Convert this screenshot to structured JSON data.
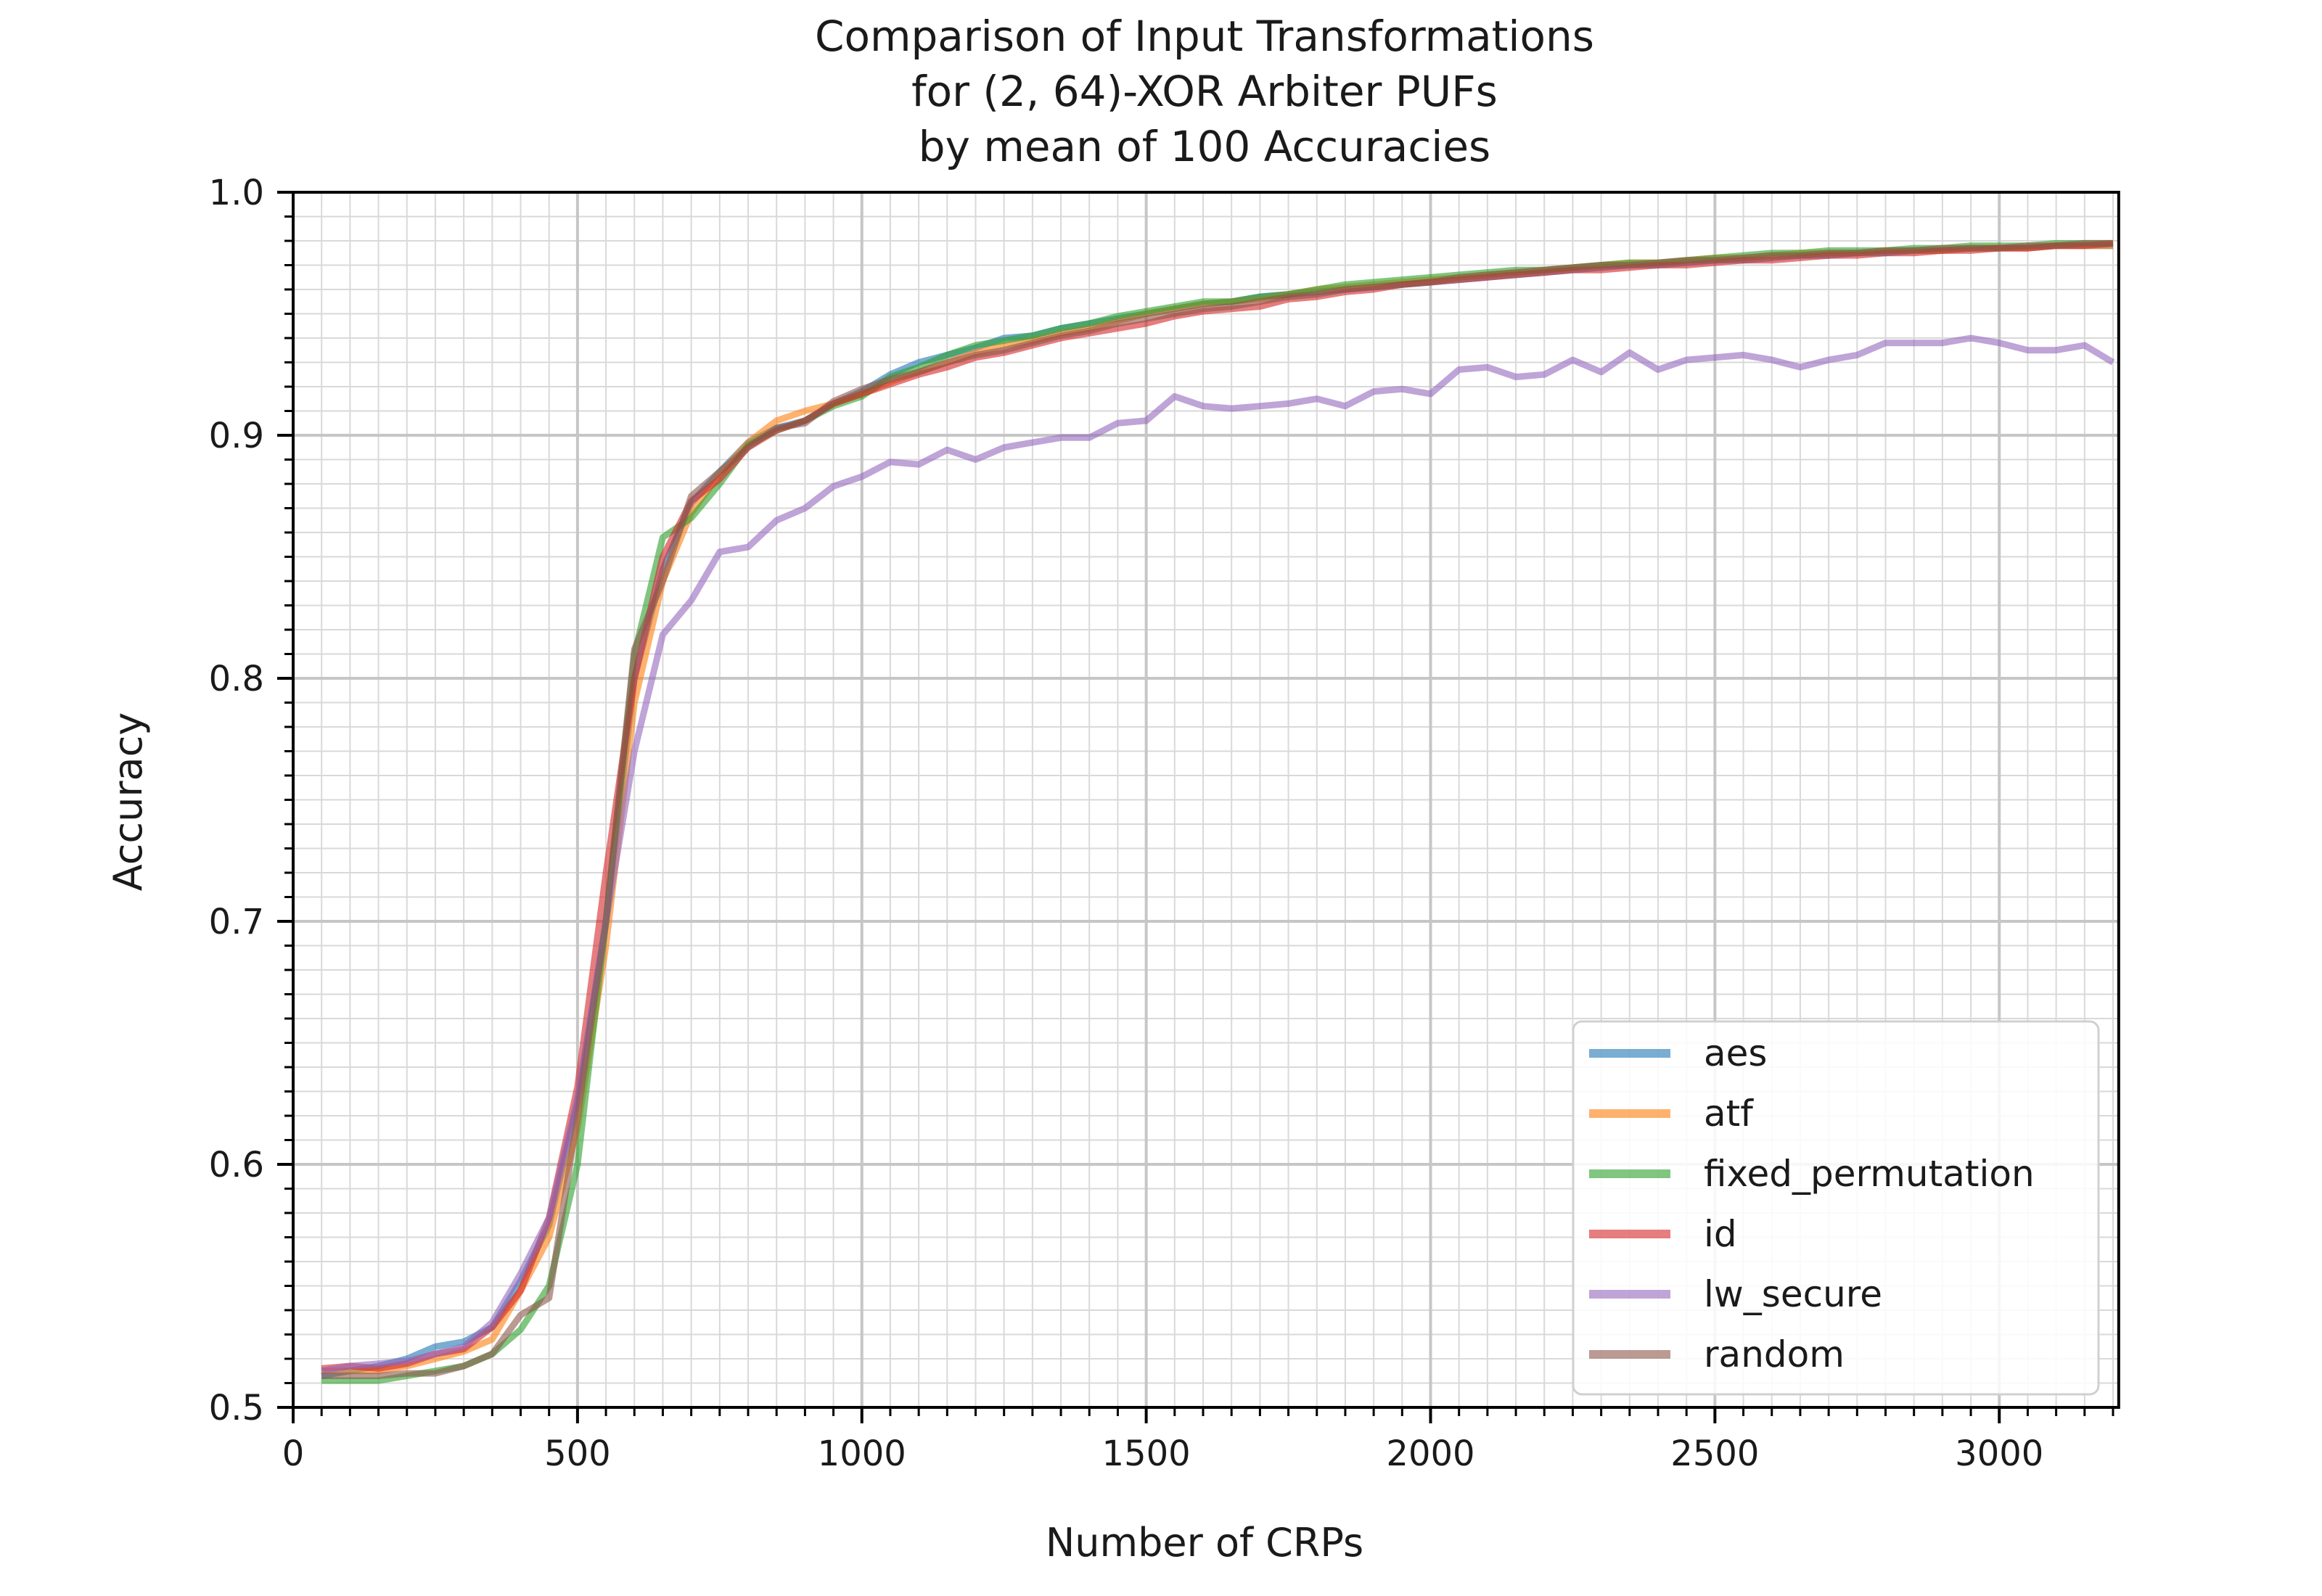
{
  "chart_data": {
    "type": "line",
    "title_lines": [
      "Comparison of Input Transformations",
      "for (2, 64)-XOR Arbiter PUFs",
      "by mean of 100 Accuracies"
    ],
    "xlabel": "Number of CRPs",
    "ylabel": "Accuracy",
    "xlim": [
      0,
      3200
    ],
    "ylim": [
      0.5,
      1.0
    ],
    "x_ticks": [
      0,
      500,
      1000,
      1500,
      2000,
      2500,
      3000
    ],
    "x_tick_labels": [
      "0",
      "500",
      "1000",
      "1500",
      "2000",
      "2500",
      "3000"
    ],
    "y_ticks": [
      0.5,
      0.6,
      0.7,
      0.8,
      0.9,
      1.0
    ],
    "y_tick_labels": [
      "0.5",
      "0.6",
      "0.7",
      "0.8",
      "0.9",
      "1.0"
    ],
    "grid": "major and minor",
    "legend_position": "lower-right",
    "x": [
      50,
      100,
      150,
      200,
      250,
      300,
      350,
      400,
      450,
      500,
      550,
      600,
      650,
      700,
      750,
      800,
      850,
      900,
      950,
      1000,
      1050,
      1100,
      1150,
      1200,
      1250,
      1300,
      1350,
      1400,
      1450,
      1500,
      1550,
      1600,
      1650,
      1700,
      1750,
      1800,
      1850,
      1900,
      1950,
      2000,
      2050,
      2100,
      2150,
      2200,
      2250,
      2300,
      2350,
      2400,
      2450,
      2500,
      2550,
      2600,
      2650,
      2700,
      2750,
      2800,
      2850,
      2900,
      2950,
      3000,
      3050,
      3100,
      3150,
      3200
    ],
    "series": [
      {
        "name": "aes",
        "color": "#1f77b4",
        "values": [
          0.513,
          0.515,
          0.517,
          0.52,
          0.525,
          0.527,
          0.533,
          0.552,
          0.575,
          0.625,
          0.7,
          0.8,
          0.845,
          0.872,
          0.885,
          0.897,
          0.903,
          0.906,
          0.913,
          0.918,
          0.925,
          0.93,
          0.933,
          0.936,
          0.94,
          0.941,
          0.944,
          0.946,
          0.948,
          0.95,
          0.952,
          0.954,
          0.955,
          0.957,
          0.958,
          0.959,
          0.96,
          0.961,
          0.962,
          0.963,
          0.964,
          0.965,
          0.966,
          0.967,
          0.968,
          0.969,
          0.97,
          0.97,
          0.971,
          0.972,
          0.972,
          0.973,
          0.974,
          0.974,
          0.975,
          0.975,
          0.976,
          0.976,
          0.977,
          0.977,
          0.977,
          0.978,
          0.978,
          0.978
        ]
      },
      {
        "name": "atf",
        "color": "#ff7f0e",
        "values": [
          0.515,
          0.515,
          0.515,
          0.517,
          0.52,
          0.523,
          0.528,
          0.548,
          0.57,
          0.615,
          0.69,
          0.79,
          0.84,
          0.868,
          0.884,
          0.897,
          0.906,
          0.91,
          0.913,
          0.917,
          0.922,
          0.926,
          0.93,
          0.934,
          0.937,
          0.939,
          0.942,
          0.944,
          0.947,
          0.95,
          0.952,
          0.954,
          0.955,
          0.956,
          0.958,
          0.96,
          0.961,
          0.962,
          0.963,
          0.964,
          0.965,
          0.966,
          0.967,
          0.968,
          0.969,
          0.97,
          0.971,
          0.971,
          0.972,
          0.973,
          0.973,
          0.974,
          0.975,
          0.975,
          0.975,
          0.976,
          0.976,
          0.976,
          0.977,
          0.977,
          0.977,
          0.978,
          0.978,
          0.978
        ]
      },
      {
        "name": "fixed_permutation",
        "color": "#2ca02c",
        "values": [
          0.511,
          0.511,
          0.511,
          0.513,
          0.515,
          0.517,
          0.522,
          0.532,
          0.55,
          0.6,
          0.7,
          0.81,
          0.858,
          0.866,
          0.88,
          0.896,
          0.902,
          0.906,
          0.912,
          0.916,
          0.924,
          0.928,
          0.933,
          0.937,
          0.939,
          0.941,
          0.944,
          0.946,
          0.949,
          0.951,
          0.953,
          0.955,
          0.955,
          0.957,
          0.958,
          0.96,
          0.962,
          0.963,
          0.964,
          0.965,
          0.966,
          0.967,
          0.968,
          0.968,
          0.969,
          0.97,
          0.971,
          0.971,
          0.972,
          0.973,
          0.974,
          0.975,
          0.975,
          0.976,
          0.976,
          0.976,
          0.977,
          0.977,
          0.978,
          0.978,
          0.978,
          0.979,
          0.979,
          0.979
        ]
      },
      {
        "name": "id",
        "color": "#d62728",
        "values": [
          0.516,
          0.517,
          0.516,
          0.518,
          0.522,
          0.524,
          0.533,
          0.548,
          0.578,
          0.632,
          0.72,
          0.8,
          0.85,
          0.873,
          0.882,
          0.895,
          0.902,
          0.906,
          0.913,
          0.917,
          0.921,
          0.925,
          0.928,
          0.932,
          0.934,
          0.937,
          0.94,
          0.942,
          0.944,
          0.946,
          0.949,
          0.951,
          0.952,
          0.953,
          0.956,
          0.957,
          0.959,
          0.96,
          0.962,
          0.963,
          0.964,
          0.965,
          0.966,
          0.967,
          0.968,
          0.968,
          0.969,
          0.97,
          0.97,
          0.971,
          0.972,
          0.972,
          0.973,
          0.974,
          0.974,
          0.975,
          0.975,
          0.976,
          0.976,
          0.977,
          0.977,
          0.978,
          0.978,
          0.979
        ]
      },
      {
        "name": "lw_secure",
        "color": "#9467bd",
        "values": [
          0.515,
          0.517,
          0.518,
          0.519,
          0.522,
          0.525,
          0.535,
          0.555,
          0.578,
          0.627,
          0.7,
          0.77,
          0.818,
          0.832,
          0.852,
          0.854,
          0.865,
          0.87,
          0.879,
          0.883,
          0.889,
          0.888,
          0.894,
          0.89,
          0.895,
          0.897,
          0.899,
          0.899,
          0.905,
          0.906,
          0.916,
          0.912,
          0.911,
          0.912,
          0.913,
          0.915,
          0.912,
          0.918,
          0.919,
          0.917,
          0.927,
          0.928,
          0.924,
          0.925,
          0.931,
          0.926,
          0.934,
          0.927,
          0.931,
          0.932,
          0.933,
          0.931,
          0.928,
          0.931,
          0.933,
          0.938,
          0.938,
          0.938,
          0.94,
          0.938,
          0.935,
          0.935,
          0.937,
          0.93
        ]
      },
      {
        "name": "random",
        "color": "#8c564b",
        "values": [
          0.513,
          0.513,
          0.513,
          0.514,
          0.514,
          0.517,
          0.522,
          0.538,
          0.545,
          0.62,
          0.7,
          0.812,
          0.84,
          0.875,
          0.885,
          0.895,
          0.903,
          0.905,
          0.914,
          0.919,
          0.923,
          0.926,
          0.93,
          0.933,
          0.935,
          0.938,
          0.941,
          0.943,
          0.946,
          0.948,
          0.95,
          0.952,
          0.953,
          0.955,
          0.957,
          0.958,
          0.96,
          0.961,
          0.962,
          0.963,
          0.965,
          0.966,
          0.967,
          0.968,
          0.969,
          0.97,
          0.97,
          0.971,
          0.972,
          0.972,
          0.973,
          0.974,
          0.974,
          0.975,
          0.975,
          0.976,
          0.976,
          0.977,
          0.977,
          0.977,
          0.978,
          0.978,
          0.979,
          0.979
        ]
      }
    ]
  }
}
